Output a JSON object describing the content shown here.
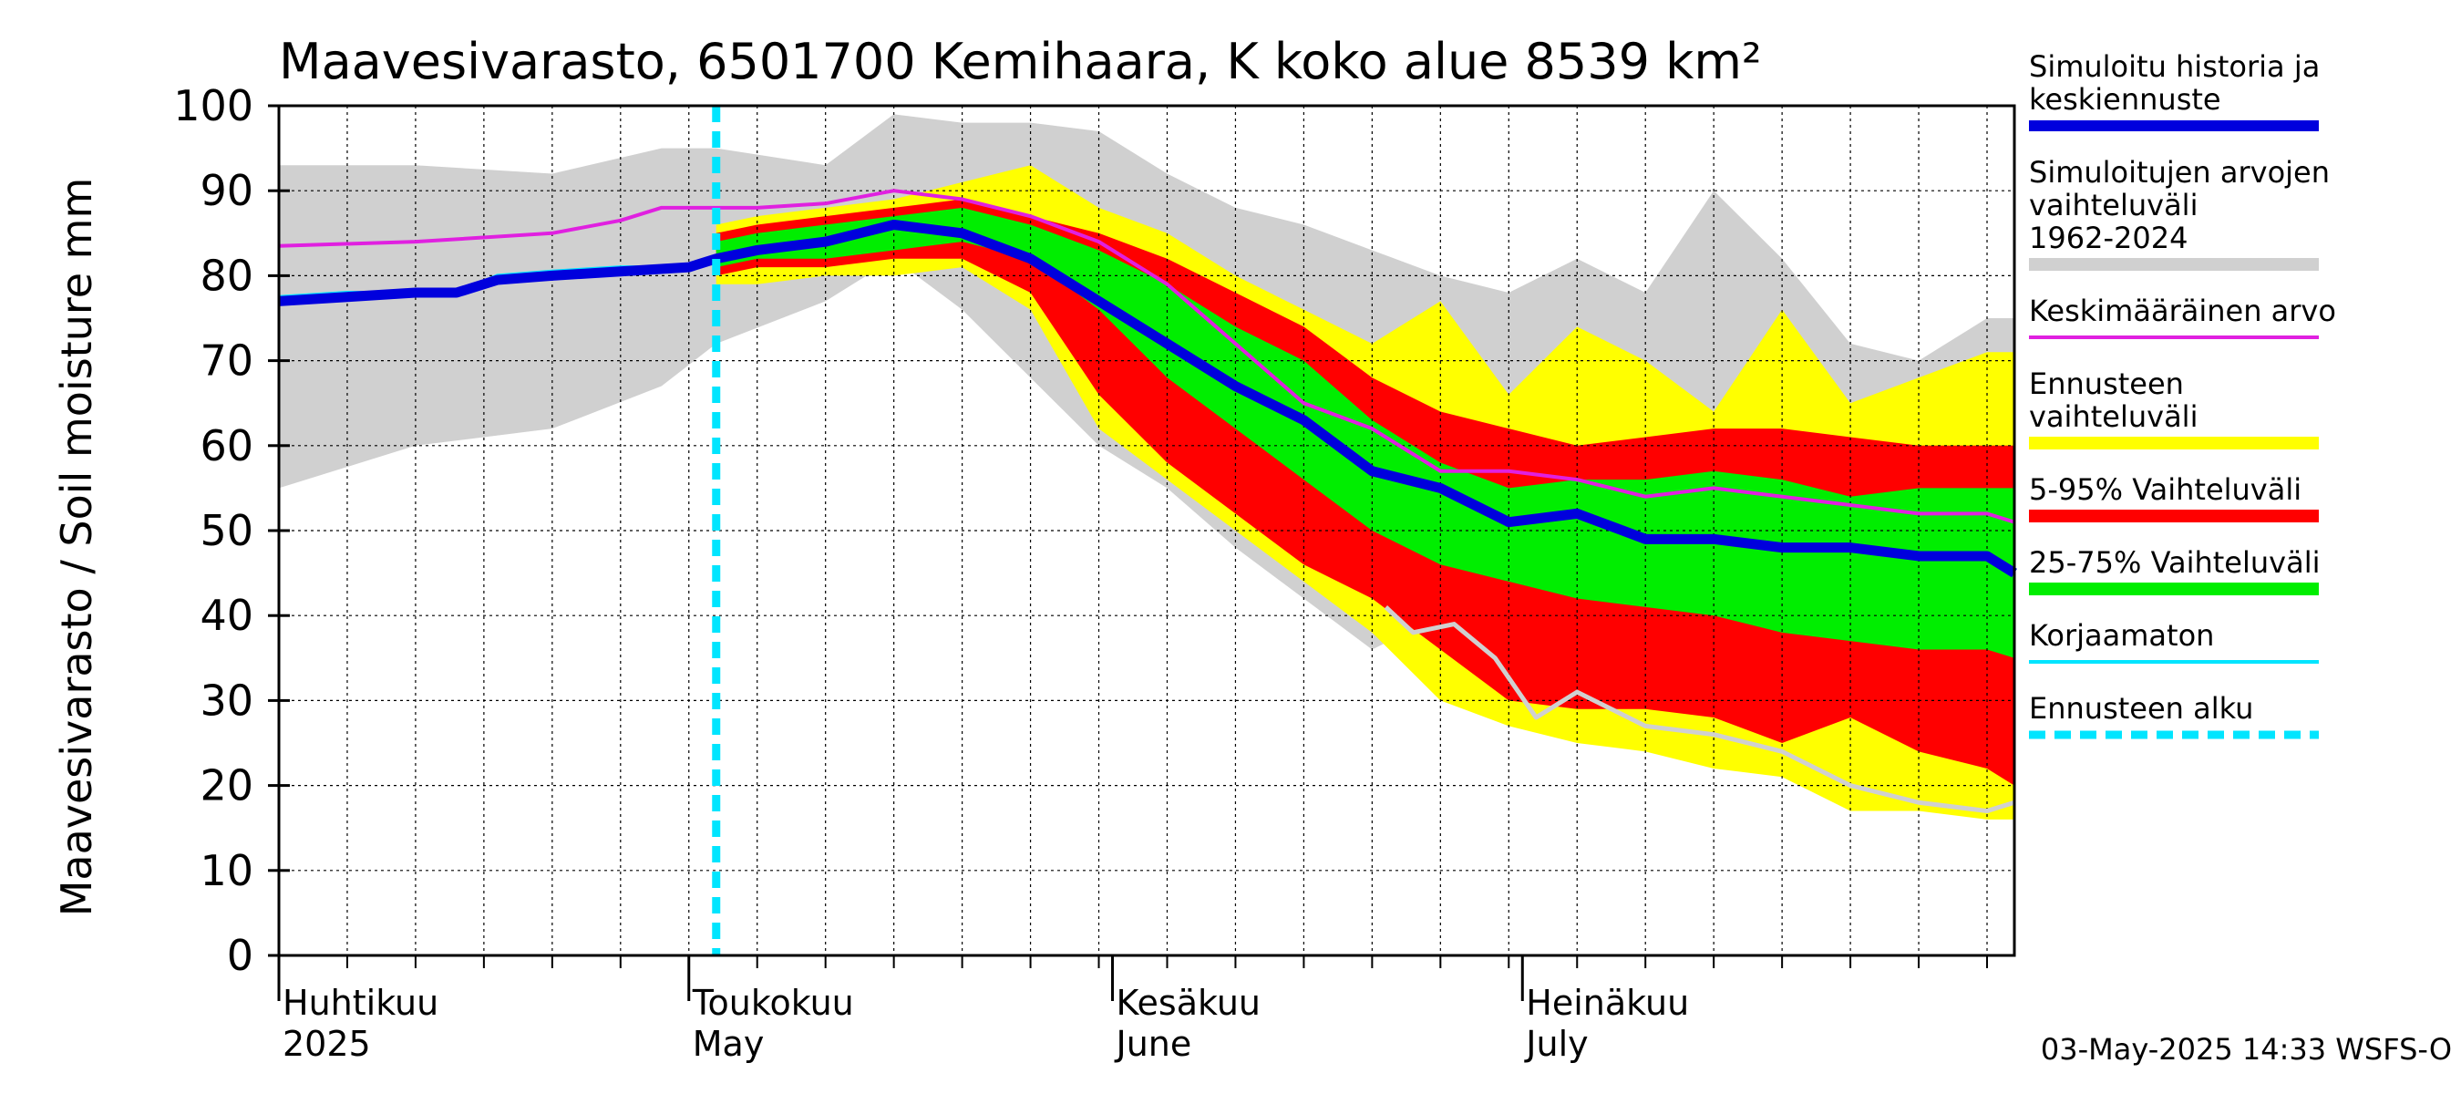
{
  "chart_data": {
    "type": "area",
    "title": "Maavesivarasto, 6501700 Kemihaara, K koko alue 8539 km²",
    "ylabel": "Maavesivarasto / Soil moisture   mm",
    "ylim": [
      0,
      100
    ],
    "yticks": [
      0,
      10,
      20,
      30,
      40,
      50,
      60,
      70,
      80,
      90,
      100
    ],
    "x_domain_days": [
      0,
      127
    ],
    "forecast_start_day": 32,
    "month_labels": [
      {
        "day": 0,
        "fi": "Huhtikuu",
        "en": "2025"
      },
      {
        "day": 30,
        "fi": "Toukokuu",
        "en": "May"
      },
      {
        "day": 61,
        "fi": "Kesäkuu",
        "en": "June"
      },
      {
        "day": 91,
        "fi": "Heinäkuu",
        "en": "July"
      }
    ],
    "legend": [
      {
        "label": "Simuloitu historia ja keskiennuste",
        "color": "#0000dd"
      },
      {
        "label": "Simuloitujen arvojen vaihteluväli 1962-2024",
        "color": "#d0d0d0"
      },
      {
        "label": "Keskimääräinen arvo",
        "color": "#e020e0"
      },
      {
        "label": "Ennusteen vaihteluväli",
        "color": "#ffff00"
      },
      {
        "label": "5-95% Vaihteluväli",
        "color": "#ff0000"
      },
      {
        "label": "25-75% Vaihteluväli",
        "color": "#00ee00"
      },
      {
        "label": "Korjaamaton",
        "color": "#00e5ff"
      },
      {
        "label": "Ennusteen alku",
        "color": "#00e5ff"
      }
    ],
    "series": [
      {
        "name": "Simuloitujen arvojen vaihteluväli 1962-2024",
        "kind": "band",
        "color": "#d0d0d0",
        "x": [
          0,
          10,
          20,
          28,
          32,
          40,
          45,
          50,
          55,
          60,
          65,
          70,
          75,
          80,
          85,
          90,
          95,
          100,
          105,
          110,
          115,
          120,
          125,
          127
        ],
        "upper": [
          93,
          93,
          92,
          95,
          95,
          93,
          99,
          98,
          98,
          97,
          92,
          88,
          86,
          83,
          80,
          78,
          82,
          78,
          90,
          82,
          72,
          70,
          75,
          75
        ],
        "lower": [
          55,
          60,
          62,
          67,
          72,
          77,
          82,
          76,
          68,
          60,
          55,
          48,
          42,
          36,
          40,
          42,
          42,
          38,
          36,
          34,
          32,
          30,
          29,
          29
        ]
      },
      {
        "name": "Ennusteen vaihteluväli",
        "kind": "band",
        "color": "#ffff00",
        "x": [
          32,
          35,
          40,
          45,
          50,
          55,
          60,
          65,
          70,
          75,
          80,
          85,
          90,
          95,
          100,
          105,
          110,
          115,
          120,
          125,
          127
        ],
        "upper": [
          86,
          87,
          88,
          89,
          91,
          93,
          88,
          85,
          80,
          76,
          72,
          77,
          66,
          74,
          70,
          64,
          76,
          65,
          68,
          71,
          71
        ],
        "lower": [
          79,
          79,
          80,
          80,
          81,
          76,
          62,
          56,
          50,
          44,
          38,
          30,
          27,
          25,
          24,
          22,
          21,
          17,
          17,
          16,
          16
        ]
      },
      {
        "name": "5-95% Vaihteluväli",
        "kind": "band",
        "color": "#ff0000",
        "x": [
          32,
          35,
          40,
          45,
          50,
          55,
          60,
          65,
          70,
          75,
          80,
          85,
          90,
          95,
          100,
          105,
          110,
          115,
          120,
          125,
          127
        ],
        "upper": [
          85,
          86,
          87,
          88,
          89,
          87,
          85,
          82,
          78,
          74,
          68,
          64,
          62,
          60,
          61,
          62,
          62,
          61,
          60,
          60,
          60
        ],
        "lower": [
          80,
          81,
          81,
          82,
          82,
          78,
          66,
          58,
          52,
          46,
          42,
          36,
          30,
          29,
          29,
          28,
          25,
          28,
          24,
          22,
          20
        ]
      },
      {
        "name": "25-75% Vaihteluväli",
        "kind": "band",
        "color": "#00ee00",
        "x": [
          32,
          35,
          40,
          45,
          50,
          55,
          60,
          65,
          70,
          75,
          80,
          85,
          90,
          95,
          100,
          105,
          110,
          115,
          120,
          125,
          127
        ],
        "upper": [
          84,
          85,
          86,
          87,
          88,
          86,
          83,
          79,
          74,
          70,
          63,
          58,
          55,
          56,
          56,
          57,
          56,
          54,
          55,
          55,
          55
        ],
        "lower": [
          81,
          82,
          82,
          83,
          84,
          82,
          76,
          68,
          62,
          56,
          50,
          46,
          44,
          42,
          41,
          40,
          38,
          37,
          36,
          36,
          35
        ]
      },
      {
        "name": "Keskimääräinen arvo",
        "kind": "line",
        "color": "#e020e0",
        "x": [
          0,
          10,
          20,
          25,
          28,
          30,
          32,
          35,
          40,
          45,
          50,
          55,
          60,
          65,
          70,
          75,
          80,
          85,
          90,
          95,
          100,
          105,
          110,
          115,
          120,
          125,
          127
        ],
        "y": [
          83.5,
          84,
          85,
          86.5,
          88,
          88,
          88,
          88,
          88.5,
          90,
          89,
          87,
          84,
          79,
          72,
          65,
          62,
          57,
          57,
          56,
          54,
          55,
          54,
          53,
          52,
          52,
          51
        ]
      },
      {
        "name": "Korjaamaton",
        "kind": "line",
        "color": "#00e5ff",
        "x": [
          0,
          5,
          10,
          13,
          16,
          20,
          25,
          30,
          32
        ],
        "y": [
          77.5,
          78,
          78,
          78,
          80,
          80.5,
          81,
          81,
          82
        ]
      },
      {
        "name": "Simuloitu historia ja keskiennuste",
        "kind": "line",
        "color": "#0000dd",
        "x": [
          0,
          5,
          10,
          13,
          16,
          20,
          25,
          30,
          32,
          35,
          40,
          45,
          50,
          55,
          60,
          65,
          70,
          75,
          80,
          85,
          90,
          95,
          100,
          105,
          110,
          115,
          120,
          125,
          127
        ],
        "y": [
          77,
          77.5,
          78,
          78,
          79.5,
          80,
          80.5,
          81,
          82,
          83,
          84,
          86,
          85,
          82,
          77,
          72,
          67,
          63,
          57,
          55,
          51,
          52,
          49,
          49,
          48,
          48,
          47,
          47,
          45
        ]
      },
      {
        "name": "Pienin skenaario",
        "kind": "line",
        "color": "#d0d0d0",
        "x": [
          81,
          83,
          86,
          89,
          92,
          95,
          100,
          105,
          110,
          115,
          120,
          125,
          127
        ],
        "y": [
          41,
          38,
          39,
          35,
          28,
          31,
          27,
          26,
          24,
          20,
          18,
          17,
          18
        ]
      }
    ]
  },
  "footer": {
    "timestamp": "03-May-2025 14:33 WSFS-O"
  }
}
